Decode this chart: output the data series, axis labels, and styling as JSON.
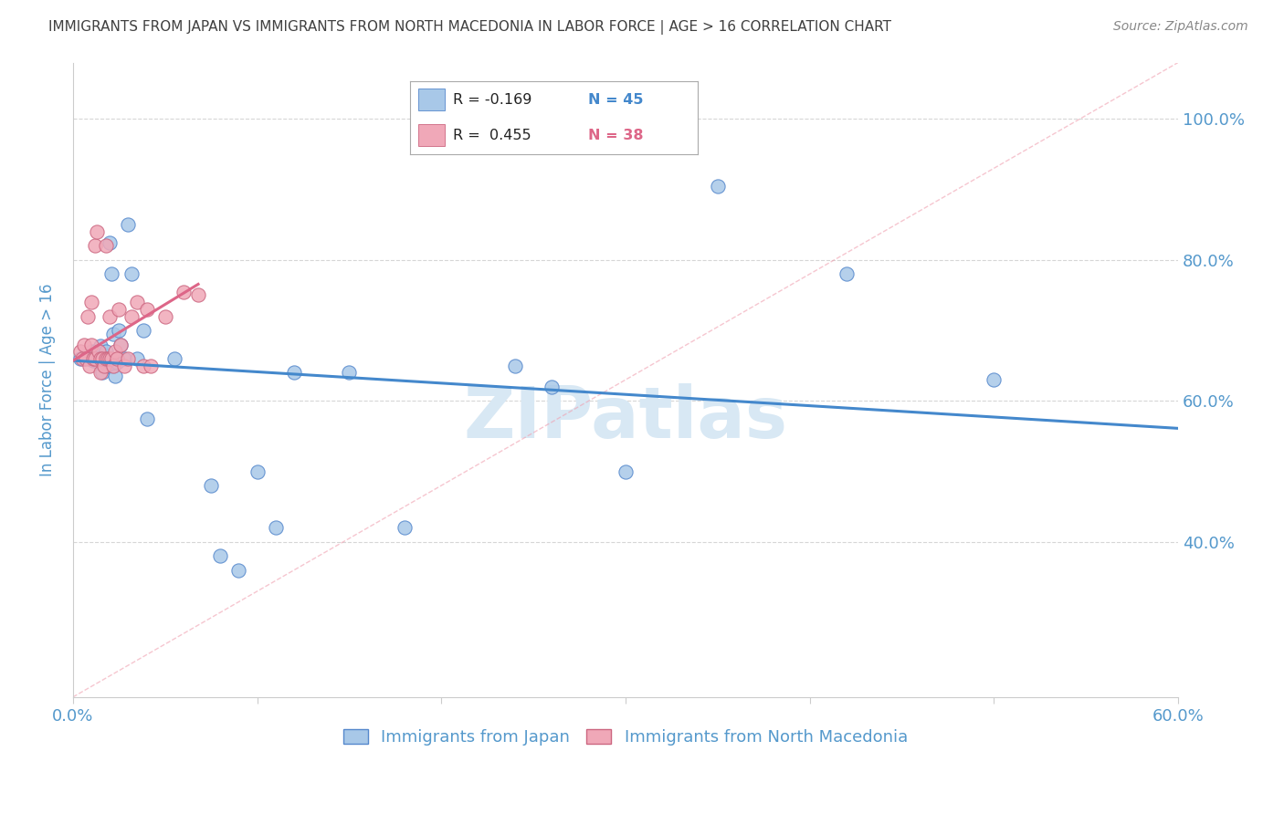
{
  "title": "IMMIGRANTS FROM JAPAN VS IMMIGRANTS FROM NORTH MACEDONIA IN LABOR FORCE | AGE > 16 CORRELATION CHART",
  "source": "Source: ZipAtlas.com",
  "ylabel": "In Labor Force | Age > 16",
  "right_ytick_labels": [
    "100.0%",
    "80.0%",
    "60.0%",
    "40.0%"
  ],
  "right_ytick_values": [
    1.0,
    0.8,
    0.6,
    0.4
  ],
  "xlim": [
    0.0,
    0.6
  ],
  "ylim": [
    0.18,
    1.08
  ],
  "xtick_labels": [
    "0.0%",
    "",
    "",
    "",
    "",
    "",
    "60.0%"
  ],
  "xtick_values": [
    0.0,
    0.1,
    0.2,
    0.3,
    0.4,
    0.5,
    0.6
  ],
  "japan_color": "#A8C8E8",
  "japan_edge_color": "#5588CC",
  "macedonia_color": "#F0A8B8",
  "macedonia_edge_color": "#CC6680",
  "japan_R": -0.169,
  "japan_N": 45,
  "macedonia_R": 0.455,
  "macedonia_N": 38,
  "trend_japan_color": "#4488CC",
  "trend_macedonia_color": "#DD6688",
  "diag_color": "#F0A0B0",
  "watermark": "ZIPatlas",
  "watermark_color": "#D8E8F4",
  "background_color": "#FFFFFF",
  "grid_color": "#CCCCCC",
  "title_color": "#404040",
  "axis_label_color": "#5599CC",
  "japan_x": [
    0.004,
    0.006,
    0.008,
    0.009,
    0.01,
    0.011,
    0.012,
    0.013,
    0.014,
    0.015,
    0.016,
    0.017,
    0.018,
    0.018,
    0.019,
    0.02,
    0.02,
    0.021,
    0.022,
    0.022,
    0.023,
    0.024,
    0.025,
    0.026,
    0.028,
    0.03,
    0.032,
    0.035,
    0.038,
    0.04,
    0.055,
    0.075,
    0.08,
    0.09,
    0.1,
    0.11,
    0.12,
    0.15,
    0.18,
    0.24,
    0.26,
    0.3,
    0.35,
    0.42,
    0.5
  ],
  "japan_y": [
    0.66,
    0.66,
    0.665,
    0.66,
    0.67,
    0.658,
    0.67,
    0.658,
    0.655,
    0.678,
    0.64,
    0.665,
    0.67,
    0.658,
    0.65,
    0.825,
    0.65,
    0.78,
    0.65,
    0.695,
    0.635,
    0.655,
    0.7,
    0.68,
    0.66,
    0.85,
    0.78,
    0.66,
    0.7,
    0.575,
    0.66,
    0.48,
    0.38,
    0.36,
    0.5,
    0.42,
    0.64,
    0.64,
    0.42,
    0.65,
    0.62,
    0.5,
    0.905,
    0.78,
    0.63
  ],
  "macedonia_x": [
    0.004,
    0.005,
    0.006,
    0.007,
    0.008,
    0.009,
    0.01,
    0.01,
    0.011,
    0.012,
    0.012,
    0.013,
    0.014,
    0.015,
    0.015,
    0.016,
    0.017,
    0.018,
    0.018,
    0.019,
    0.02,
    0.02,
    0.021,
    0.022,
    0.023,
    0.024,
    0.025,
    0.026,
    0.028,
    0.03,
    0.032,
    0.035,
    0.038,
    0.04,
    0.042,
    0.05,
    0.06,
    0.068
  ],
  "macedonia_y": [
    0.67,
    0.66,
    0.68,
    0.66,
    0.72,
    0.65,
    0.74,
    0.68,
    0.66,
    0.82,
    0.66,
    0.84,
    0.67,
    0.66,
    0.64,
    0.66,
    0.65,
    0.82,
    0.66,
    0.66,
    0.72,
    0.66,
    0.66,
    0.65,
    0.67,
    0.66,
    0.73,
    0.68,
    0.65,
    0.66,
    0.72,
    0.74,
    0.65,
    0.73,
    0.65,
    0.72,
    0.755,
    0.75
  ]
}
